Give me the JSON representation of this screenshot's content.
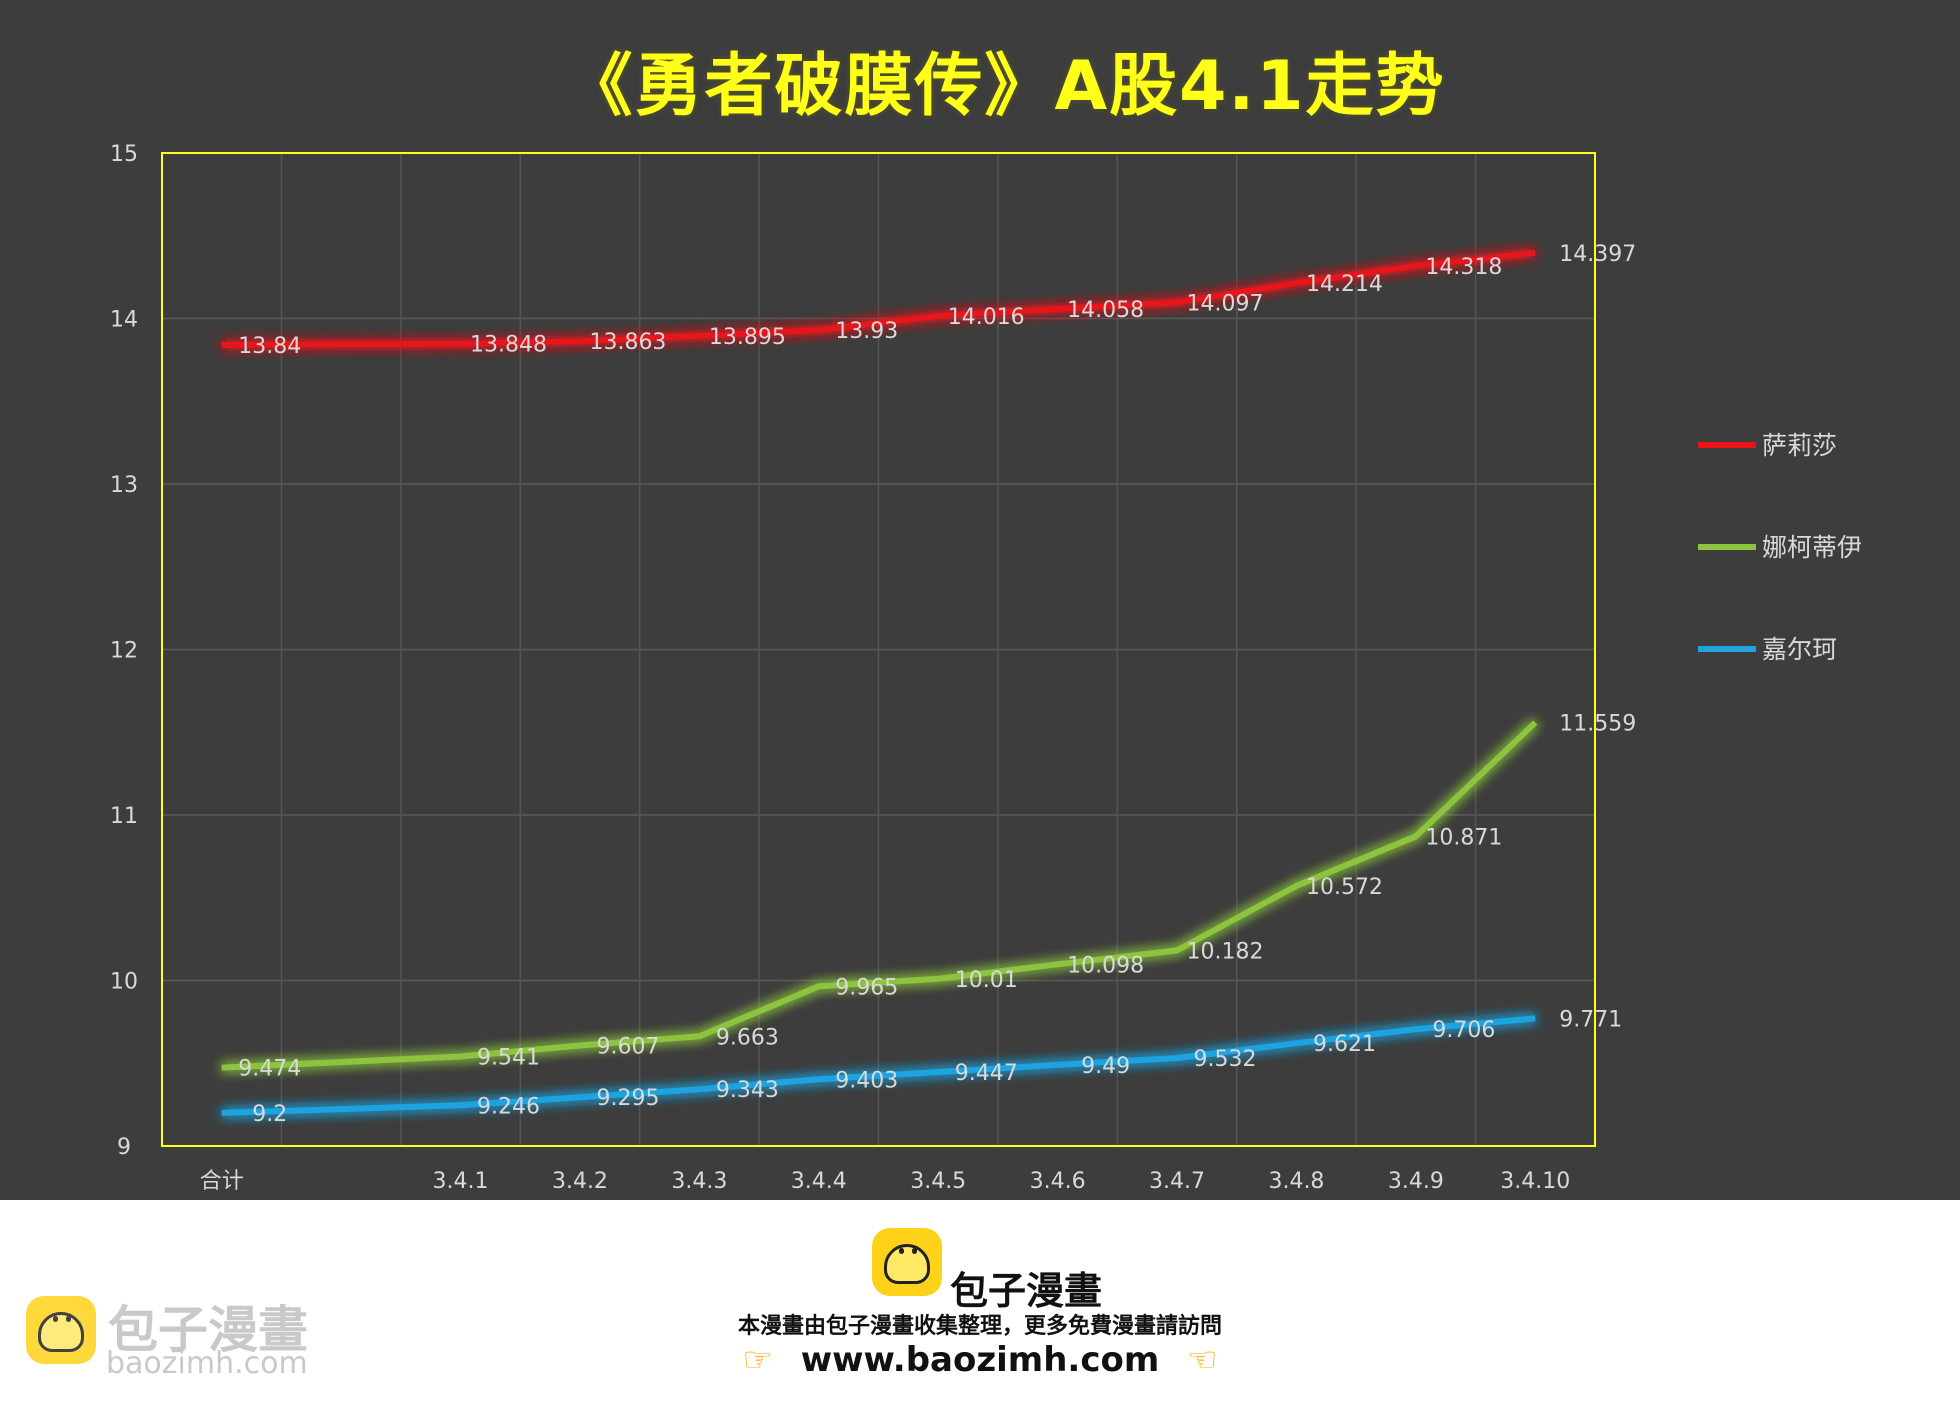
{
  "chart_data": {
    "type": "line",
    "title": "《勇者破膜传》A股4.1走势",
    "categories": [
      "合计",
      "",
      "3.4.1",
      "3.4.2",
      "3.4.3",
      "3.4.4",
      "3.4.5",
      "3.4.6",
      "3.4.7",
      "3.4.8",
      "3.4.9",
      "3.4.10"
    ],
    "ylim": [
      9,
      15
    ],
    "yticks": [
      9,
      10,
      11,
      12,
      13,
      14,
      15
    ],
    "grid": true,
    "legend_position": "right",
    "series": [
      {
        "name": "萨莉莎",
        "color": "#e8141a",
        "values": [
          13.84,
          null,
          13.848,
          13.863,
          13.895,
          13.93,
          14.016,
          14.058,
          14.097,
          14.214,
          14.318,
          14.397
        ],
        "labels": [
          "13.84",
          "",
          "13.848",
          "13.863",
          "13.895",
          "13.93",
          "14.016",
          "14.058",
          "14.097",
          "14.214",
          "14.318",
          "14.397"
        ]
      },
      {
        "name": "娜柯蒂伊",
        "color": "#8cc43f",
        "values": [
          9.474,
          null,
          9.541,
          9.607,
          9.663,
          9.965,
          10.01,
          10.098,
          10.182,
          10.572,
          10.871,
          11.559
        ],
        "labels": [
          "9.474",
          "",
          "9.541",
          "9.607",
          "9.663",
          "9.965",
          "10.01",
          "10.098",
          "10.182",
          "10.572",
          "10.871",
          "11.559"
        ]
      },
      {
        "name": "嘉尔珂",
        "color": "#1fa3e0",
        "values": [
          9.2,
          null,
          9.246,
          9.295,
          9.343,
          9.403,
          9.447,
          9.49,
          9.532,
          9.621,
          9.706,
          9.771
        ],
        "labels": [
          "9.2",
          "",
          "9.246",
          "9.295",
          "9.343",
          "9.403",
          "9.447",
          "9.49",
          "9.532",
          "9.621",
          "9.706",
          "9.771"
        ]
      }
    ]
  },
  "footer": {
    "brand": "包子漫畫",
    "notice": "本漫畫由包子漫畫收集整理，更多免費漫畫請訪問",
    "url": "www.baozimh.com"
  },
  "watermark": {
    "brand": "包子漫畫",
    "url": "baozimh.com"
  },
  "colors": {
    "background": "#3d3d3d",
    "title": "#ffff1a",
    "plot_border": "#ffff1a",
    "logo": "#ffd21a"
  }
}
